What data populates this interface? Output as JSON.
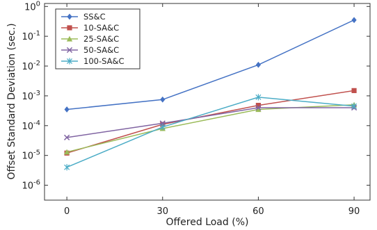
{
  "chart_data": {
    "type": "line",
    "xlabel": "Offered Load (%)",
    "ylabel": "Offset Standard Deviation (sec.)",
    "x": [
      0,
      30,
      60,
      90
    ],
    "x_tick_labels": [
      "0",
      "30",
      "60",
      "90"
    ],
    "xlim": [
      -7,
      95
    ],
    "yscale": "log",
    "ylim_exponent": [
      -6.5,
      0.1
    ],
    "y_ticks": [
      {
        "base": "10",
        "exp": "-6",
        "value": 1e-06
      },
      {
        "base": "10",
        "exp": "-5",
        "value": 1e-05
      },
      {
        "base": "10",
        "exp": "-4",
        "value": 0.0001
      },
      {
        "base": "10",
        "exp": "-3",
        "value": 0.001
      },
      {
        "base": "10",
        "exp": "-2",
        "value": 0.01
      },
      {
        "base": "10",
        "exp": "-1",
        "value": 0.1
      },
      {
        "base": "10",
        "exp": "0",
        "value": 1
      }
    ],
    "grid": false,
    "legend_position": "top-left",
    "series": [
      {
        "name": "SS&C",
        "color": "#4472c4",
        "marker": "diamond",
        "values": [
          0.00035,
          0.00075,
          0.011,
          0.35
        ]
      },
      {
        "name": "10-SA&C",
        "color": "#c0504d",
        "marker": "square",
        "values": [
          1.2e-05,
          0.00011,
          0.00048,
          0.0015
        ]
      },
      {
        "name": "25-SA&C",
        "color": "#9bbb59",
        "marker": "triangle",
        "values": [
          1.3e-05,
          8e-05,
          0.00035,
          0.0005
        ]
      },
      {
        "name": "50-SA&C",
        "color": "#8064a2",
        "marker": "x",
        "values": [
          4e-05,
          0.00012,
          0.0004,
          0.0004
        ]
      },
      {
        "name": "100-SA&C",
        "color": "#4bacc6",
        "marker": "star",
        "values": [
          4e-06,
          9e-05,
          0.0009,
          0.00045
        ]
      }
    ]
  }
}
